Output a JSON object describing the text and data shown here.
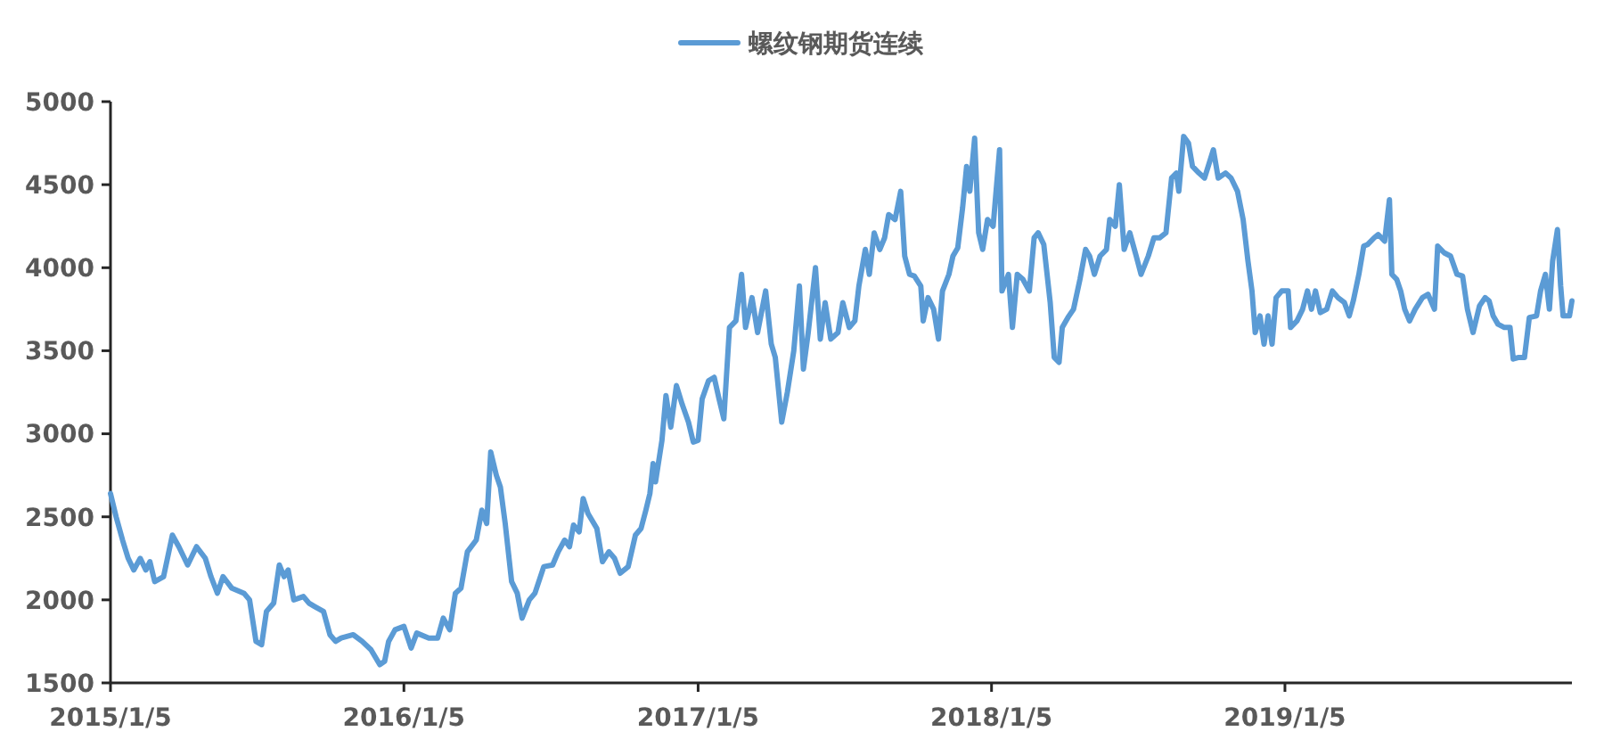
{
  "chart_data": {
    "type": "line",
    "legend": "top",
    "xlim": [
      "2015-01-05",
      "2019-12-28"
    ],
    "xticks": [
      {
        "value": "2015-01-05",
        "label": "2015/1/5"
      },
      {
        "value": "2016-01-05",
        "label": "2016/1/5"
      },
      {
        "value": "2017-01-05",
        "label": "2017/1/5"
      },
      {
        "value": "2018-01-05",
        "label": "2018/1/5"
      },
      {
        "value": "2019-01-05",
        "label": "2019/1/5"
      }
    ],
    "ylim": [
      1500,
      5000
    ],
    "yticks": [
      1500,
      2000,
      2500,
      3000,
      3500,
      4000,
      4500,
      5000
    ],
    "x": [
      "2015-01-05",
      "2015-01-12",
      "2015-01-20",
      "2015-01-27",
      "2015-02-03",
      "2015-02-11",
      "2015-02-18",
      "2015-02-23",
      "2015-03-01",
      "2015-03-12",
      "2015-03-23",
      "2015-03-31",
      "2015-04-11",
      "2015-04-22",
      "2015-05-03",
      "2015-05-10",
      "2015-05-18",
      "2015-05-25",
      "2015-06-05",
      "2015-06-20",
      "2015-06-27",
      "2015-07-05",
      "2015-07-12",
      "2015-07-18",
      "2015-07-27",
      "2015-08-03",
      "2015-08-09",
      "2015-08-14",
      "2015-08-21",
      "2015-09-02",
      "2015-09-09",
      "2015-09-16",
      "2015-09-27",
      "2015-10-05",
      "2015-10-12",
      "2015-10-19",
      "2015-11-03",
      "2015-11-14",
      "2015-11-25",
      "2015-12-06",
      "2015-12-12",
      "2015-12-17",
      "2015-12-25",
      "2016-01-05",
      "2016-01-14",
      "2016-01-21",
      "2016-02-05",
      "2016-02-16",
      "2016-02-23",
      "2016-03-02",
      "2016-03-09",
      "2016-03-16",
      "2016-03-24",
      "2016-04-04",
      "2016-04-11",
      "2016-04-17",
      "2016-04-22",
      "2016-04-29",
      "2016-05-04",
      "2016-05-10",
      "2016-05-18",
      "2016-05-25",
      "2016-05-31",
      "2016-06-09",
      "2016-06-16",
      "2016-06-27",
      "2016-07-08",
      "2016-07-15",
      "2016-07-23",
      "2016-07-29",
      "2016-08-03",
      "2016-08-10",
      "2016-08-15",
      "2016-08-21",
      "2016-09-01",
      "2016-09-08",
      "2016-09-16",
      "2016-09-23",
      "2016-09-30",
      "2016-10-10",
      "2016-10-19",
      "2016-10-26",
      "2016-11-01",
      "2016-11-06",
      "2016-11-10",
      "2016-11-13",
      "2016-11-21",
      "2016-11-26",
      "2016-12-02",
      "2016-12-09",
      "2016-12-16",
      "2016-12-24",
      "2016-12-30",
      "2017-01-05",
      "2017-01-10",
      "2017-01-18",
      "2017-01-25",
      "2017-01-31",
      "2017-02-06",
      "2017-02-13",
      "2017-02-21",
      "2017-02-28",
      "2017-03-05",
      "2017-03-13",
      "2017-03-20",
      "2017-03-30",
      "2017-04-06",
      "2017-04-11",
      "2017-04-19",
      "2017-04-26",
      "2017-05-04",
      "2017-05-11",
      "2017-05-16",
      "2017-05-22",
      "2017-05-31",
      "2017-06-06",
      "2017-06-12",
      "2017-06-19",
      "2017-06-28",
      "2017-07-04",
      "2017-07-12",
      "2017-07-19",
      "2017-07-24",
      "2017-08-01",
      "2017-08-06",
      "2017-08-12",
      "2017-08-19",
      "2017-08-25",
      "2017-08-30",
      "2017-09-07",
      "2017-09-14",
      "2017-09-19",
      "2017-09-25",
      "2017-10-01",
      "2017-10-09",
      "2017-10-12",
      "2017-10-18",
      "2017-10-25",
      "2017-10-31",
      "2017-11-05",
      "2017-11-13",
      "2017-11-18",
      "2017-11-24",
      "2017-11-30",
      "2017-12-05",
      "2017-12-09",
      "2017-12-15",
      "2017-12-20",
      "2017-12-25",
      "2017-12-31",
      "2018-01-07",
      "2018-01-15",
      "2018-01-18",
      "2018-01-26",
      "2018-01-31",
      "2018-02-06",
      "2018-02-13",
      "2018-02-21",
      "2018-02-27",
      "2018-03-04",
      "2018-03-11",
      "2018-03-19",
      "2018-03-24",
      "2018-03-30",
      "2018-04-03",
      "2018-04-10",
      "2018-04-17",
      "2018-04-25",
      "2018-05-02",
      "2018-05-07",
      "2018-05-13",
      "2018-05-20",
      "2018-05-28",
      "2018-06-01",
      "2018-06-08",
      "2018-06-13",
      "2018-06-19",
      "2018-06-26",
      "2018-07-04",
      "2018-07-10",
      "2018-07-19",
      "2018-07-26",
      "2018-08-02",
      "2018-08-10",
      "2018-08-17",
      "2018-08-23",
      "2018-08-26",
      "2018-09-01",
      "2018-09-07",
      "2018-09-12",
      "2018-09-20",
      "2018-09-27",
      "2018-10-08",
      "2018-10-14",
      "2018-10-23",
      "2018-10-30",
      "2018-11-07",
      "2018-11-14",
      "2018-11-20",
      "2018-11-25",
      "2018-11-29",
      "2018-12-05",
      "2018-12-10",
      "2018-12-15",
      "2018-12-20",
      "2018-12-25",
      "2019-01-01",
      "2019-01-09",
      "2019-01-12",
      "2019-01-20",
      "2019-01-27",
      "2019-02-02",
      "2019-02-07",
      "2019-02-12",
      "2019-02-18",
      "2019-02-26",
      "2019-03-05",
      "2019-03-12",
      "2019-03-20",
      "2019-03-26",
      "2019-03-31",
      "2019-04-07",
      "2019-04-13",
      "2019-04-18",
      "2019-04-26",
      "2019-05-01",
      "2019-05-09",
      "2019-05-15",
      "2019-05-18",
      "2019-05-24",
      "2019-05-29",
      "2019-06-03",
      "2019-06-09",
      "2019-06-16",
      "2019-06-25",
      "2019-07-02",
      "2019-07-10",
      "2019-07-14",
      "2019-07-22",
      "2019-07-30",
      "2019-08-07",
      "2019-08-14",
      "2019-08-20",
      "2019-08-27",
      "2019-09-04",
      "2019-09-11",
      "2019-09-16",
      "2019-09-21",
      "2019-09-27",
      "2019-10-05",
      "2019-10-12",
      "2019-10-16",
      "2019-10-23",
      "2019-10-30",
      "2019-11-05",
      "2019-11-14",
      "2019-11-19",
      "2019-11-25",
      "2019-11-30",
      "2019-12-04",
      "2019-12-10",
      "2019-12-14",
      "2019-12-17",
      "2019-12-25",
      "2019-12-28"
    ],
    "series": [
      {
        "name": "螺纹钢期货连续",
        "color": "#5b9bd5",
        "values": [
          2640,
          2500,
          2360,
          2250,
          2180,
          2250,
          2180,
          2230,
          2110,
          2140,
          2390,
          2320,
          2210,
          2320,
          2250,
          2140,
          2040,
          2140,
          2070,
          2040,
          2000,
          1750,
          1730,
          1930,
          1980,
          2210,
          2140,
          2180,
          2000,
          2020,
          1980,
          1960,
          1930,
          1790,
          1750,
          1770,
          1790,
          1750,
          1700,
          1610,
          1630,
          1750,
          1820,
          1840,
          1710,
          1800,
          1770,
          1770,
          1890,
          1820,
          2040,
          2070,
          2290,
          2360,
          2540,
          2460,
          2890,
          2750,
          2680,
          2460,
          2110,
          2040,
          1890,
          2000,
          2040,
          2200,
          2210,
          2290,
          2360,
          2320,
          2450,
          2410,
          2610,
          2520,
          2430,
          2230,
          2290,
          2250,
          2160,
          2200,
          2390,
          2430,
          2540,
          2640,
          2820,
          2710,
          2960,
          3230,
          3040,
          3290,
          3180,
          3070,
          2950,
          2960,
          3210,
          3320,
          3340,
          3210,
          3090,
          3640,
          3680,
          3960,
          3640,
          3820,
          3610,
          3860,
          3540,
          3460,
          3070,
          3250,
          3500,
          3890,
          3390,
          3610,
          4000,
          3570,
          3790,
          3570,
          3610,
          3790,
          3640,
          3680,
          3890,
          4110,
          3960,
          4210,
          4110,
          4180,
          4320,
          4290,
          4460,
          4070,
          3960,
          3950,
          3890,
          3680,
          3820,
          3750,
          3570,
          3860,
          3960,
          4070,
          4120,
          4360,
          4610,
          4460,
          4780,
          4210,
          4110,
          4290,
          4250,
          4710,
          3860,
          3960,
          3640,
          3960,
          3930,
          3860,
          4180,
          4210,
          4140,
          3790,
          3460,
          3430,
          3640,
          3700,
          3750,
          3930,
          4110,
          4070,
          3960,
          4070,
          4110,
          4290,
          4250,
          4500,
          4110,
          4210,
          4070,
          3960,
          4070,
          4180,
          4180,
          4210,
          4540,
          4570,
          4460,
          4790,
          4750,
          4610,
          4570,
          4540,
          4710,
          4540,
          4570,
          4540,
          4460,
          4290,
          4040,
          3860,
          3610,
          3710,
          3540,
          3710,
          3540,
          3820,
          3860,
          3860,
          3640,
          3680,
          3750,
          3860,
          3750,
          3860,
          3730,
          3750,
          3860,
          3820,
          3790,
          3710,
          3800,
          3960,
          4130,
          4140,
          4180,
          4200,
          4160,
          4410,
          3960,
          3930,
          3860,
          3750,
          3680,
          3750,
          3820,
          3840,
          3750,
          4130,
          4090,
          4070,
          3960,
          3950,
          3750,
          3610,
          3770,
          3820,
          3800,
          3710,
          3660,
          3640,
          3640,
          3450,
          3460,
          3460,
          3700,
          3710,
          3860,
          3960,
          3750,
          4040,
          4230,
          3890,
          3710,
          3710,
          3800
        ]
      }
    ]
  }
}
